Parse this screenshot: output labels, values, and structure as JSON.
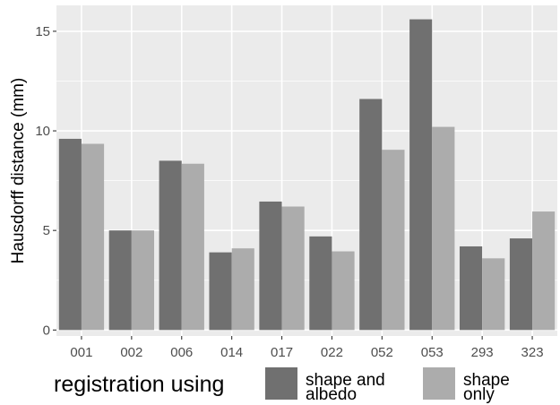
{
  "chart_data": {
    "type": "bar",
    "categories": [
      "001",
      "002",
      "006",
      "014",
      "017",
      "022",
      "052",
      "053",
      "293",
      "323"
    ],
    "series": [
      {
        "name": "shape and albedo",
        "color": "#707070",
        "values": [
          9.6,
          5.0,
          8.5,
          3.9,
          6.45,
          4.7,
          11.6,
          15.6,
          4.2,
          4.6
        ]
      },
      {
        "name": "shape only",
        "color": "#acacac",
        "values": [
          9.35,
          5.0,
          8.35,
          4.1,
          6.2,
          3.95,
          9.05,
          10.2,
          3.6,
          5.95
        ]
      }
    ],
    "title": "",
    "xlabel": "",
    "ylabel": "Hausdorff distance (mm)",
    "ylim": [
      -0.3,
      16.3
    ],
    "yticks": [
      0,
      5,
      10,
      15
    ],
    "grid": true,
    "legend": {
      "title": "registration using",
      "placement": "bottom",
      "labels": [
        [
          "shape and",
          "albedo"
        ],
        [
          "shape",
          "only"
        ]
      ]
    }
  }
}
